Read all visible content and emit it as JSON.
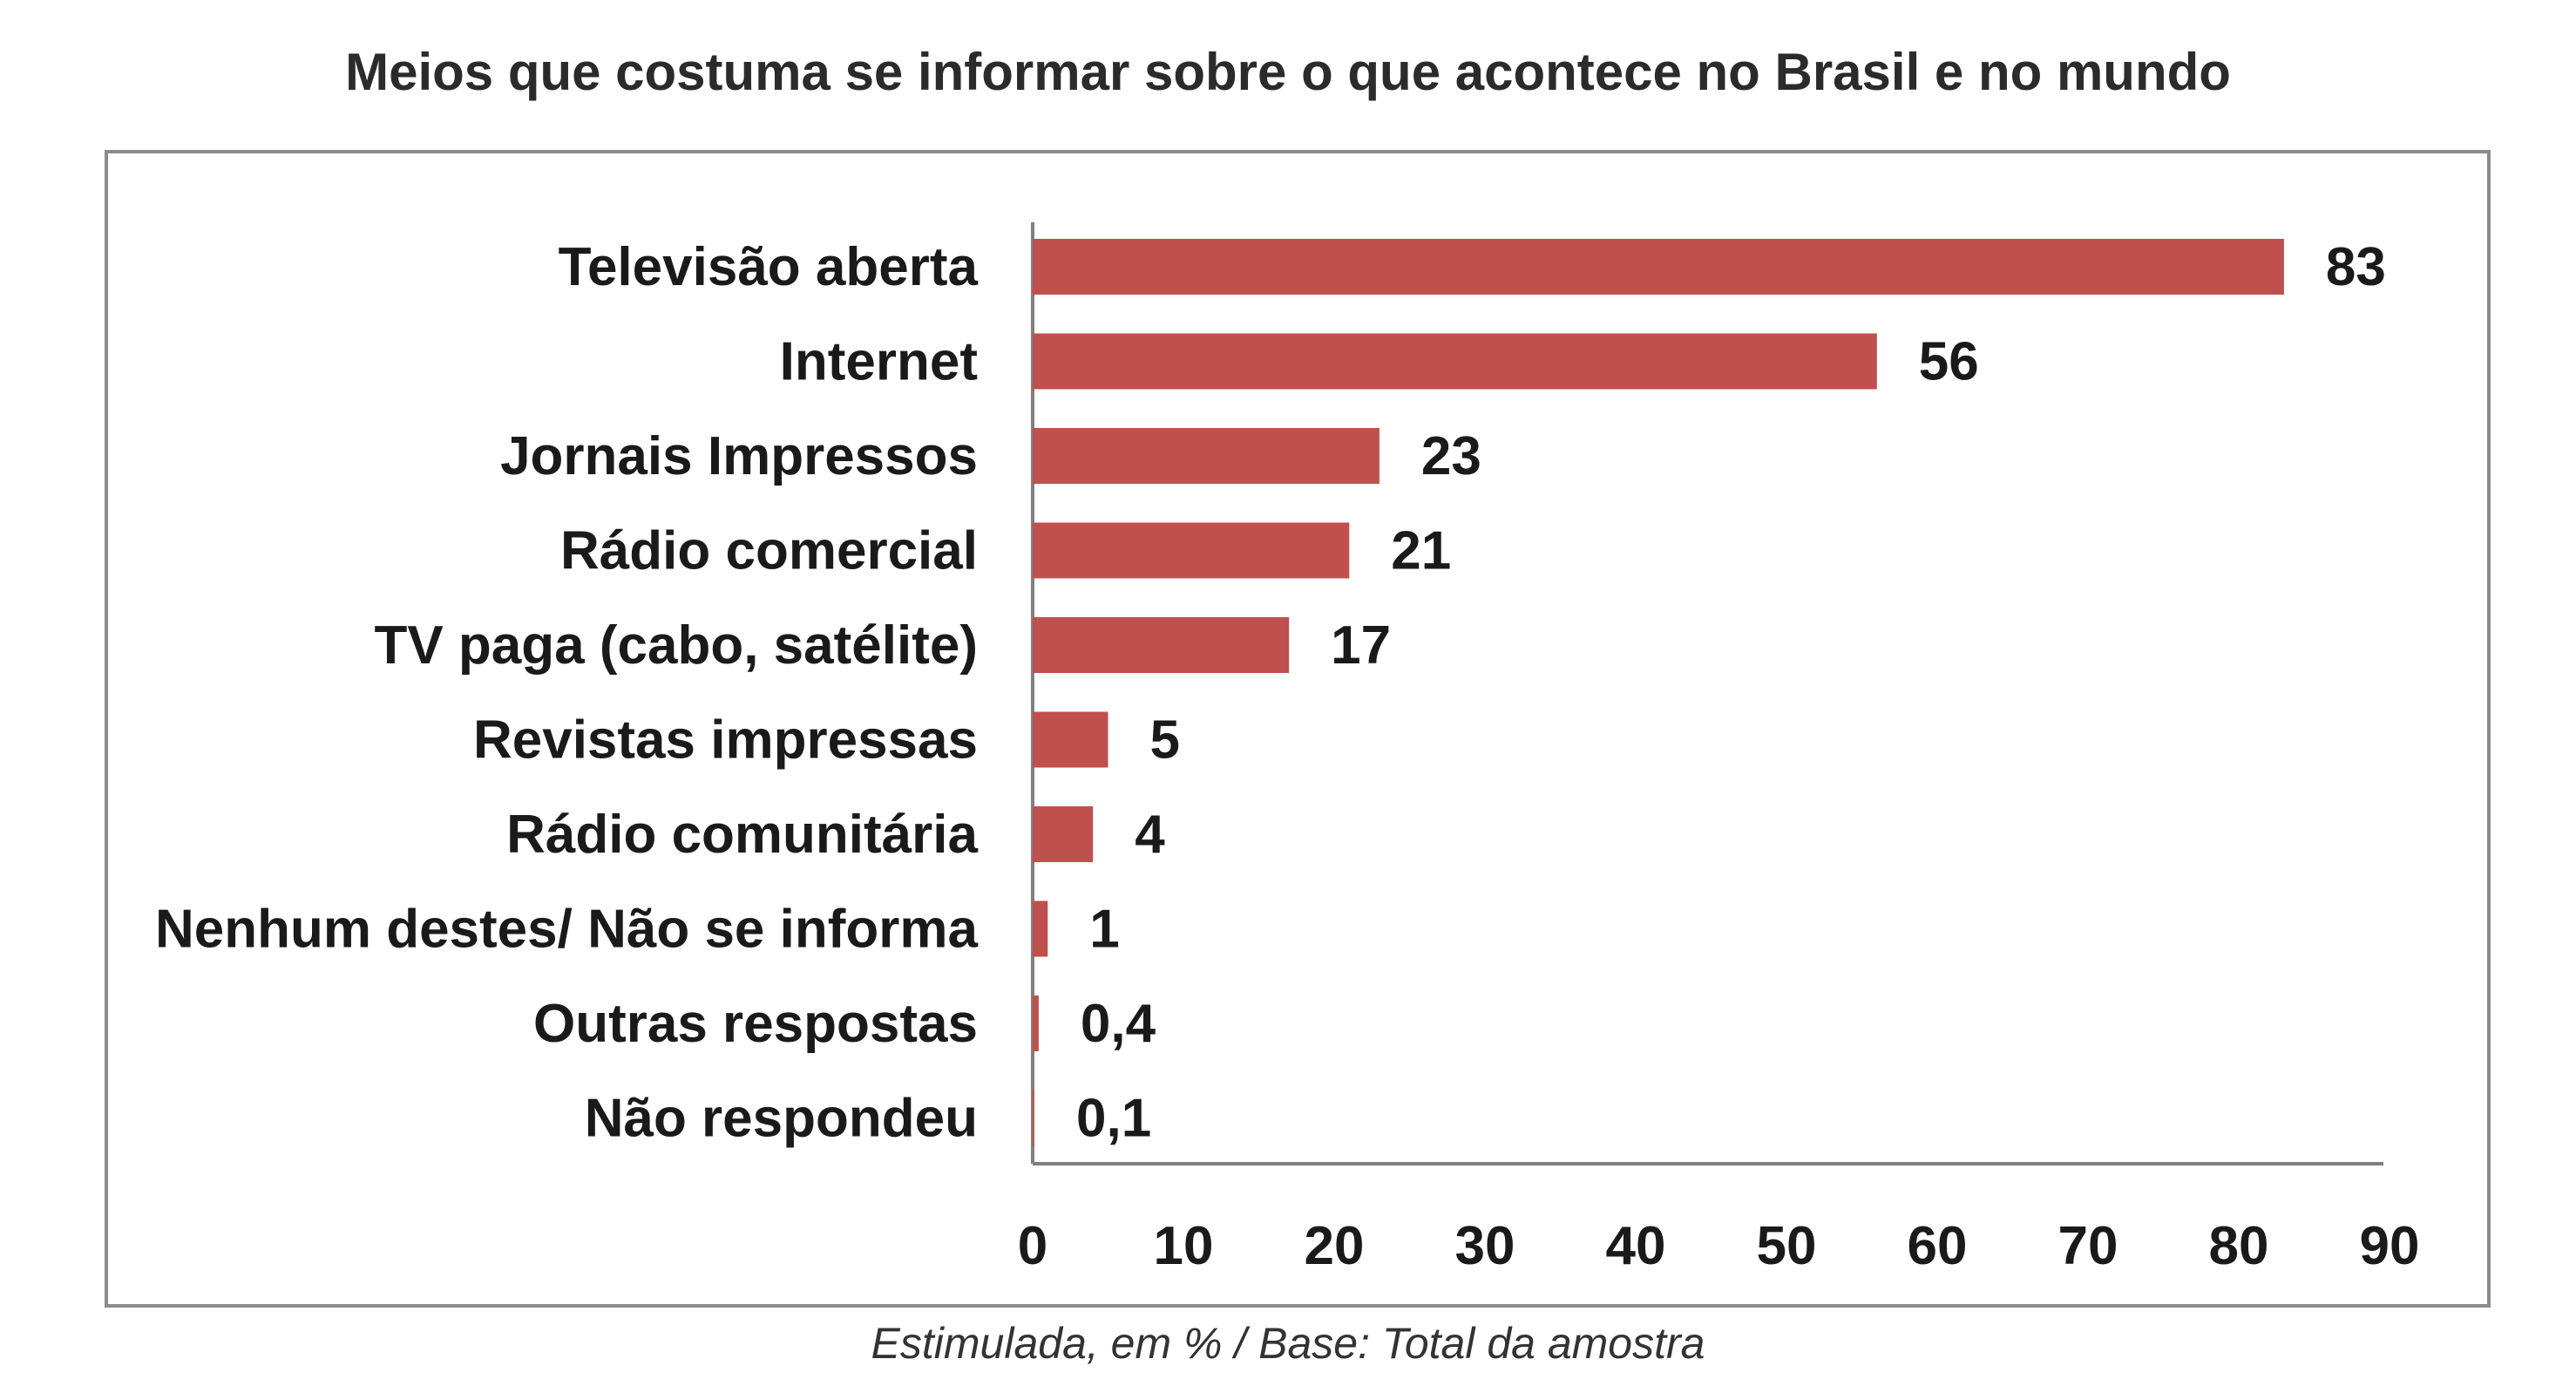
{
  "chart_data": {
    "type": "bar",
    "orientation": "horizontal",
    "title": "Meios que costuma se informar sobre o que acontece no Brasil e no mundo",
    "caption": "Estimulada, em % / Base: Total da amostra",
    "categories": [
      "Televisão aberta",
      "Internet",
      "Jornais Impressos",
      "Rádio comercial",
      "TV paga (cabo, satélite)",
      "Revistas impressas",
      "Rádio comunitária",
      "Nenhum destes/ Não se informa",
      "Outras respostas",
      "Não respondeu"
    ],
    "values": [
      83,
      56,
      23,
      21,
      17,
      5,
      4,
      1,
      0.4,
      0.1
    ],
    "value_labels": [
      "83",
      "56",
      "23",
      "21",
      "17",
      "5",
      "4",
      "1",
      "0,4",
      "0,1"
    ],
    "xlim": [
      0,
      90
    ],
    "xticks": [
      "0",
      "10",
      "20",
      "30",
      "40",
      "50",
      "60",
      "70",
      "80",
      "90"
    ],
    "grid": false,
    "legend": "none",
    "colors": {
      "bar": "#c0504d"
    }
  }
}
